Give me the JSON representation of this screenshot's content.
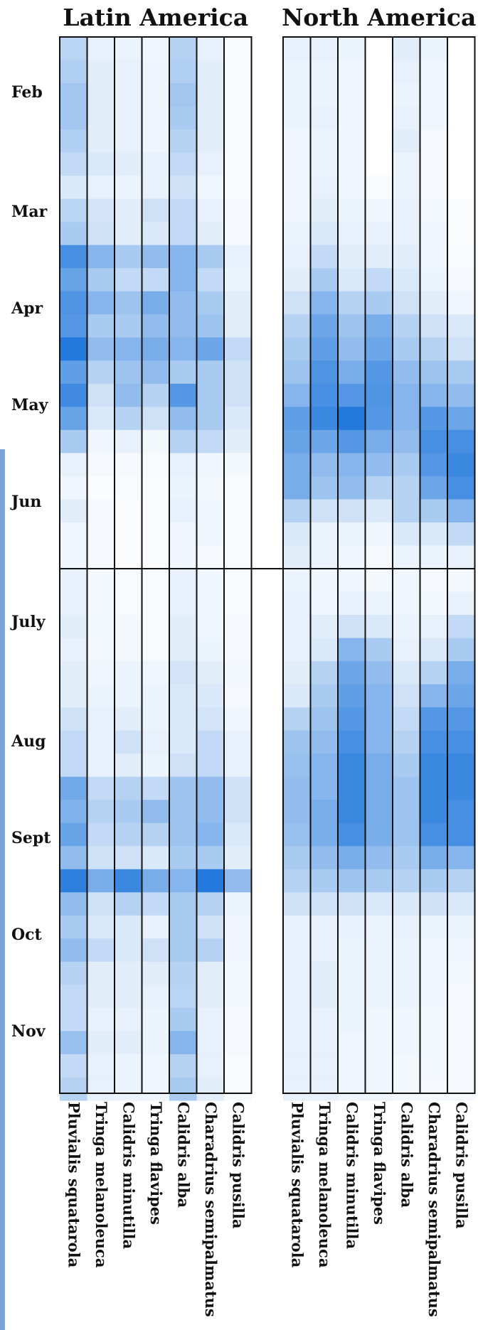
{
  "chart_data": {
    "type": "heatmap",
    "value_scale": "relative intensity 0-1 (read from cell shading)",
    "color_low": "#ffffff",
    "color_high": "#0a6ad8",
    "month_labels": [
      "Feb",
      "Mar",
      "Apr",
      "May",
      "Jun",
      "July",
      "Aug",
      "Sept",
      "Oct",
      "Nov"
    ],
    "species": [
      "Pluvialis squatarola",
      "Tringa melanoleuca",
      "Calidris minutilla",
      "Tringa flavipes",
      "Calidris alba",
      "Charadrius semipalmatus",
      "Calidris pusilla"
    ],
    "panels": [
      {
        "title": "Latin America",
        "upper": [
          [
            0.28,
            0.1,
            0.08,
            0.06,
            0.3,
            0.1,
            0.03
          ],
          [
            0.32,
            0.12,
            0.1,
            0.07,
            0.32,
            0.12,
            0.03
          ],
          [
            0.38,
            0.12,
            0.1,
            0.07,
            0.38,
            0.12,
            0.03
          ],
          [
            0.38,
            0.12,
            0.1,
            0.07,
            0.35,
            0.12,
            0.03
          ],
          [
            0.32,
            0.12,
            0.1,
            0.07,
            0.3,
            0.12,
            0.03
          ],
          [
            0.25,
            0.15,
            0.12,
            0.1,
            0.25,
            0.1,
            0.03
          ],
          [
            0.15,
            0.1,
            0.08,
            0.1,
            0.2,
            0.06,
            0.03
          ],
          [
            0.28,
            0.18,
            0.12,
            0.2,
            0.25,
            0.1,
            0.04
          ],
          [
            0.35,
            0.2,
            0.12,
            0.15,
            0.25,
            0.12,
            0.04
          ],
          [
            0.75,
            0.5,
            0.35,
            0.45,
            0.5,
            0.35,
            0.1
          ],
          [
            0.62,
            0.35,
            0.25,
            0.25,
            0.5,
            0.25,
            0.08
          ],
          [
            0.72,
            0.5,
            0.4,
            0.55,
            0.45,
            0.35,
            0.12
          ],
          [
            0.7,
            0.35,
            0.35,
            0.45,
            0.45,
            0.4,
            0.12
          ],
          [
            0.9,
            0.45,
            0.5,
            0.55,
            0.5,
            0.6,
            0.25
          ],
          [
            0.65,
            0.3,
            0.4,
            0.45,
            0.35,
            0.35,
            0.2
          ],
          [
            0.78,
            0.2,
            0.45,
            0.3,
            0.7,
            0.35,
            0.2
          ],
          [
            0.62,
            0.15,
            0.3,
            0.2,
            0.45,
            0.35,
            0.15
          ],
          [
            0.35,
            0.06,
            0.1,
            0.05,
            0.3,
            0.25,
            0.12
          ],
          [
            0.1,
            0.04,
            0.04,
            0.03,
            0.1,
            0.06,
            0.05
          ],
          [
            0.06,
            0.02,
            0.03,
            0.02,
            0.08,
            0.05,
            0.03
          ],
          [
            0.12,
            0.04,
            0.02,
            0.02,
            0.1,
            0.06,
            0.03
          ],
          [
            0.06,
            0.04,
            0.02,
            0.02,
            0.06,
            0.06,
            0.03
          ],
          [
            0.06,
            0.04,
            0.02,
            0.02,
            0.06,
            0.04,
            0.03
          ]
        ],
        "lower": [
          [
            0.1,
            0.05,
            0.03,
            0.03,
            0.1,
            0.06,
            0.03
          ],
          [
            0.1,
            0.05,
            0.03,
            0.03,
            0.1,
            0.06,
            0.03
          ],
          [
            0.12,
            0.05,
            0.05,
            0.03,
            0.12,
            0.06,
            0.04
          ],
          [
            0.1,
            0.05,
            0.05,
            0.03,
            0.12,
            0.08,
            0.04
          ],
          [
            0.12,
            0.06,
            0.08,
            0.06,
            0.18,
            0.12,
            0.05
          ],
          [
            0.12,
            0.08,
            0.08,
            0.08,
            0.15,
            0.15,
            0.04
          ],
          [
            0.2,
            0.1,
            0.12,
            0.08,
            0.15,
            0.18,
            0.06
          ],
          [
            0.25,
            0.1,
            0.2,
            0.1,
            0.15,
            0.25,
            0.1
          ],
          [
            0.25,
            0.1,
            0.12,
            0.08,
            0.2,
            0.25,
            0.1
          ],
          [
            0.58,
            0.25,
            0.3,
            0.25,
            0.4,
            0.45,
            0.2
          ],
          [
            0.52,
            0.3,
            0.35,
            0.45,
            0.4,
            0.45,
            0.2
          ],
          [
            0.62,
            0.25,
            0.3,
            0.3,
            0.4,
            0.5,
            0.15
          ],
          [
            0.45,
            0.2,
            0.2,
            0.15,
            0.35,
            0.35,
            0.12
          ],
          [
            0.85,
            0.55,
            0.8,
            0.55,
            0.5,
            0.9,
            0.45
          ],
          [
            0.45,
            0.2,
            0.3,
            0.25,
            0.35,
            0.3,
            0.08
          ],
          [
            0.35,
            0.15,
            0.15,
            0.1,
            0.35,
            0.2,
            0.06
          ],
          [
            0.45,
            0.25,
            0.15,
            0.2,
            0.35,
            0.3,
            0.06
          ],
          [
            0.3,
            0.12,
            0.12,
            0.12,
            0.3,
            0.12,
            0.05
          ],
          [
            0.25,
            0.12,
            0.12,
            0.1,
            0.28,
            0.12,
            0.05
          ],
          [
            0.25,
            0.1,
            0.1,
            0.08,
            0.35,
            0.1,
            0.04
          ],
          [
            0.42,
            0.12,
            0.12,
            0.08,
            0.5,
            0.1,
            0.04
          ],
          [
            0.25,
            0.1,
            0.08,
            0.06,
            0.3,
            0.1,
            0.03
          ],
          [
            0.3,
            0.1,
            0.08,
            0.06,
            0.35,
            0.12,
            0.03
          ]
        ]
      },
      {
        "title": "North America",
        "upper": [
          [
            0.1,
            0.1,
            0.08,
            0.0,
            0.12,
            0.08,
            0.0
          ],
          [
            0.08,
            0.08,
            0.06,
            0.0,
            0.1,
            0.06,
            0.0
          ],
          [
            0.08,
            0.08,
            0.06,
            0.0,
            0.08,
            0.06,
            0.0
          ],
          [
            0.08,
            0.1,
            0.06,
            0.0,
            0.1,
            0.06,
            0.0
          ],
          [
            0.06,
            0.08,
            0.06,
            0.0,
            0.12,
            0.04,
            0.0
          ],
          [
            0.06,
            0.08,
            0.06,
            0.0,
            0.08,
            0.04,
            0.0
          ],
          [
            0.06,
            0.1,
            0.06,
            0.03,
            0.08,
            0.04,
            0.0
          ],
          [
            0.06,
            0.12,
            0.08,
            0.06,
            0.1,
            0.05,
            0.02
          ],
          [
            0.08,
            0.15,
            0.1,
            0.1,
            0.1,
            0.06,
            0.02
          ],
          [
            0.1,
            0.25,
            0.12,
            0.12,
            0.12,
            0.06,
            0.03
          ],
          [
            0.12,
            0.35,
            0.15,
            0.25,
            0.15,
            0.08,
            0.04
          ],
          [
            0.2,
            0.5,
            0.3,
            0.35,
            0.2,
            0.12,
            0.06
          ],
          [
            0.3,
            0.6,
            0.4,
            0.55,
            0.3,
            0.2,
            0.15
          ],
          [
            0.35,
            0.65,
            0.45,
            0.6,
            0.35,
            0.3,
            0.2
          ],
          [
            0.4,
            0.72,
            0.55,
            0.7,
            0.45,
            0.4,
            0.35
          ],
          [
            0.5,
            0.75,
            0.7,
            0.72,
            0.5,
            0.5,
            0.45
          ],
          [
            0.65,
            0.8,
            0.9,
            0.7,
            0.5,
            0.7,
            0.6
          ],
          [
            0.62,
            0.6,
            0.7,
            0.55,
            0.45,
            0.75,
            0.75
          ],
          [
            0.55,
            0.45,
            0.5,
            0.45,
            0.35,
            0.7,
            0.8
          ],
          [
            0.55,
            0.4,
            0.45,
            0.3,
            0.3,
            0.6,
            0.75
          ],
          [
            0.3,
            0.2,
            0.2,
            0.15,
            0.3,
            0.35,
            0.5
          ],
          [
            0.15,
            0.08,
            0.08,
            0.06,
            0.15,
            0.15,
            0.25
          ],
          [
            0.12,
            0.08,
            0.06,
            0.04,
            0.08,
            0.08,
            0.1
          ]
        ],
        "lower": [
          [
            0.08,
            0.06,
            0.06,
            0.05,
            0.06,
            0.04,
            0.05
          ],
          [
            0.1,
            0.06,
            0.1,
            0.08,
            0.06,
            0.05,
            0.1
          ],
          [
            0.1,
            0.12,
            0.2,
            0.15,
            0.08,
            0.1,
            0.25
          ],
          [
            0.1,
            0.15,
            0.5,
            0.35,
            0.1,
            0.15,
            0.35
          ],
          [
            0.12,
            0.3,
            0.6,
            0.45,
            0.15,
            0.3,
            0.55
          ],
          [
            0.15,
            0.35,
            0.65,
            0.5,
            0.2,
            0.5,
            0.6
          ],
          [
            0.3,
            0.4,
            0.7,
            0.5,
            0.25,
            0.7,
            0.7
          ],
          [
            0.4,
            0.45,
            0.75,
            0.5,
            0.3,
            0.75,
            0.75
          ],
          [
            0.42,
            0.5,
            0.8,
            0.55,
            0.35,
            0.8,
            0.8
          ],
          [
            0.45,
            0.5,
            0.8,
            0.55,
            0.4,
            0.8,
            0.8
          ],
          [
            0.45,
            0.55,
            0.8,
            0.55,
            0.4,
            0.8,
            0.75
          ],
          [
            0.42,
            0.55,
            0.75,
            0.55,
            0.4,
            0.75,
            0.75
          ],
          [
            0.35,
            0.45,
            0.55,
            0.45,
            0.35,
            0.55,
            0.5
          ],
          [
            0.3,
            0.35,
            0.4,
            0.35,
            0.3,
            0.35,
            0.3
          ],
          [
            0.2,
            0.2,
            0.2,
            0.15,
            0.15,
            0.2,
            0.15
          ],
          [
            0.1,
            0.1,
            0.1,
            0.08,
            0.1,
            0.08,
            0.08
          ],
          [
            0.1,
            0.1,
            0.08,
            0.08,
            0.08,
            0.06,
            0.06
          ],
          [
            0.1,
            0.12,
            0.08,
            0.08,
            0.08,
            0.06,
            0.05
          ],
          [
            0.1,
            0.12,
            0.08,
            0.08,
            0.08,
            0.06,
            0.04
          ],
          [
            0.1,
            0.1,
            0.08,
            0.06,
            0.06,
            0.05,
            0.04
          ],
          [
            0.1,
            0.1,
            0.06,
            0.06,
            0.06,
            0.05,
            0.04
          ],
          [
            0.1,
            0.1,
            0.06,
            0.06,
            0.05,
            0.05,
            0.04
          ],
          [
            0.1,
            0.1,
            0.06,
            0.06,
            0.05,
            0.04,
            0.04
          ]
        ]
      }
    ]
  }
}
